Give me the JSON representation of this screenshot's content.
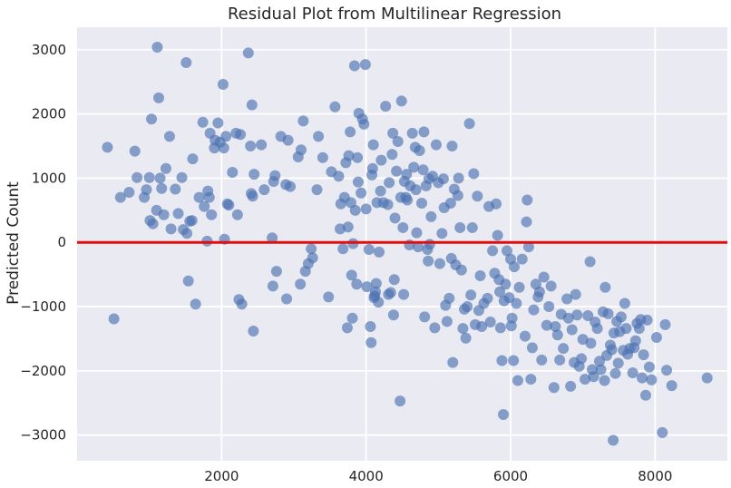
{
  "chart_data": {
    "type": "scatter",
    "title": "Residual Plot from Multilinear Regression",
    "xlabel": "",
    "ylabel": "Predicted Count",
    "xlim": [
      0,
      9000
    ],
    "ylim": [
      -3400,
      3350
    ],
    "xticks": [
      2000,
      4000,
      6000,
      8000
    ],
    "yticks": [
      -3000,
      -2000,
      -1000,
      0,
      1000,
      2000,
      3000
    ],
    "xtick_labels": [
      "2000",
      "4000",
      "6000",
      "8000"
    ],
    "ytick_labels": [
      "−3000",
      "−2000",
      "−1000",
      "0",
      "1000",
      "2000",
      "3000"
    ],
    "grid": true,
    "reference_line": {
      "y": 0,
      "color": "#e01010"
    },
    "point_color": "#4c72b0",
    "background": "#eaeaf2",
    "points": [
      [
        420,
        1480
      ],
      [
        510,
        -1190
      ],
      [
        600,
        700
      ],
      [
        720,
        780
      ],
      [
        800,
        1420
      ],
      [
        830,
        1010
      ],
      [
        930,
        700
      ],
      [
        960,
        820
      ],
      [
        1000,
        1010
      ],
      [
        1010,
        340
      ],
      [
        1030,
        1920
      ],
      [
        1050,
        290
      ],
      [
        1100,
        500
      ],
      [
        1110,
        3040
      ],
      [
        1130,
        2250
      ],
      [
        1150,
        1000
      ],
      [
        1170,
        840
      ],
      [
        1200,
        430
      ],
      [
        1230,
        1150
      ],
      [
        1280,
        1650
      ],
      [
        1300,
        210
      ],
      [
        1360,
        830
      ],
      [
        1400,
        450
      ],
      [
        1450,
        1010
      ],
      [
        1470,
        200
      ],
      [
        1510,
        2800
      ],
      [
        1520,
        140
      ],
      [
        1540,
        -600
      ],
      [
        1560,
        330
      ],
      [
        1590,
        340
      ],
      [
        1600,
        1300
      ],
      [
        1640,
        -960
      ],
      [
        1690,
        700
      ],
      [
        1740,
        1870
      ],
      [
        1760,
        560
      ],
      [
        1800,
        20
      ],
      [
        1810,
        800
      ],
      [
        1830,
        700
      ],
      [
        1840,
        1700
      ],
      [
        1860,
        430
      ],
      [
        1900,
        1470
      ],
      [
        1910,
        1590
      ],
      [
        1950,
        1860
      ],
      [
        1980,
        1560
      ],
      [
        2020,
        2460
      ],
      [
        2030,
        1470
      ],
      [
        2040,
        50
      ],
      [
        2060,
        1650
      ],
      [
        2080,
        600
      ],
      [
        2100,
        580
      ],
      [
        2150,
        1090
      ],
      [
        2200,
        1700
      ],
      [
        2220,
        430
      ],
      [
        2240,
        -890
      ],
      [
        2260,
        1680
      ],
      [
        2280,
        -960
      ],
      [
        2370,
        2950
      ],
      [
        2400,
        1500
      ],
      [
        2410,
        760
      ],
      [
        2420,
        2140
      ],
      [
        2430,
        720
      ],
      [
        2440,
        -1380
      ],
      [
        2450,
        1060
      ],
      [
        2550,
        1520
      ],
      [
        2590,
        820
      ],
      [
        2700,
        70
      ],
      [
        2710,
        -680
      ],
      [
        2720,
        950
      ],
      [
        2740,
        1040
      ],
      [
        2760,
        -450
      ],
      [
        2820,
        1650
      ],
      [
        2890,
        900
      ],
      [
        2900,
        -880
      ],
      [
        2920,
        1590
      ],
      [
        2950,
        870
      ],
      [
        3060,
        1330
      ],
      [
        3090,
        -650
      ],
      [
        3100,
        1440
      ],
      [
        3130,
        1890
      ],
      [
        3160,
        -450
      ],
      [
        3200,
        -330
      ],
      [
        3240,
        -100
      ],
      [
        3260,
        -240
      ],
      [
        3320,
        820
      ],
      [
        3340,
        1650
      ],
      [
        3400,
        1320
      ],
      [
        3480,
        -850
      ],
      [
        3520,
        1100
      ],
      [
        3570,
        2110
      ],
      [
        3620,
        1030
      ],
      [
        3640,
        210
      ],
      [
        3650,
        600
      ],
      [
        3680,
        -100
      ],
      [
        3700,
        700
      ],
      [
        3720,
        1240
      ],
      [
        3740,
        -1330
      ],
      [
        3750,
        240
      ],
      [
        3760,
        1350
      ],
      [
        3780,
        1720
      ],
      [
        3790,
        620
      ],
      [
        3800,
        -510
      ],
      [
        3810,
        -1180
      ],
      [
        3820,
        -20
      ],
      [
        3840,
        2750
      ],
      [
        3850,
        500
      ],
      [
        3870,
        -650
      ],
      [
        3880,
        1320
      ],
      [
        3890,
        940
      ],
      [
        3900,
        2010
      ],
      [
        3930,
        770
      ],
      [
        3950,
        1920
      ],
      [
        3970,
        1840
      ],
      [
        3990,
        2770
      ],
      [
        4000,
        520
      ],
      [
        4010,
        -690
      ],
      [
        4040,
        -110
      ],
      [
        4060,
        -1310
      ],
      [
        4070,
        -1560
      ],
      [
        4080,
        1050
      ],
      [
        4090,
        1150
      ],
      [
        4100,
        1520
      ],
      [
        4110,
        -860
      ],
      [
        4120,
        -830
      ],
      [
        4130,
        -770
      ],
      [
        4140,
        -640
      ],
      [
        4150,
        620
      ],
      [
        4170,
        -930
      ],
      [
        4180,
        -150
      ],
      [
        4200,
        800
      ],
      [
        4210,
        1280
      ],
      [
        4240,
        620
      ],
      [
        4270,
        2120
      ],
      [
        4300,
        590
      ],
      [
        4310,
        -810
      ],
      [
        4320,
        930
      ],
      [
        4340,
        -780
      ],
      [
        4360,
        1370
      ],
      [
        4370,
        1700
      ],
      [
        4380,
        -1130
      ],
      [
        4390,
        -580
      ],
      [
        4400,
        380
      ],
      [
        4420,
        1110
      ],
      [
        4440,
        1570
      ],
      [
        4470,
        -2470
      ],
      [
        4480,
        700
      ],
      [
        4490,
        2200
      ],
      [
        4510,
        230
      ],
      [
        4520,
        -810
      ],
      [
        4530,
        950
      ],
      [
        4550,
        700
      ],
      [
        4560,
        1060
      ],
      [
        4570,
        660
      ],
      [
        4600,
        -40
      ],
      [
        4610,
        880
      ],
      [
        4640,
        1700
      ],
      [
        4660,
        1170
      ],
      [
        4680,
        1480
      ],
      [
        4690,
        820
      ],
      [
        4700,
        150
      ],
      [
        4720,
        -70
      ],
      [
        4740,
        1430
      ],
      [
        4770,
        610
      ],
      [
        4790,
        1130
      ],
      [
        4800,
        1720
      ],
      [
        4810,
        -1160
      ],
      [
        4830,
        880
      ],
      [
        4850,
        -110
      ],
      [
        4860,
        -290
      ],
      [
        4870,
        990
      ],
      [
        4880,
        -30
      ],
      [
        4900,
        400
      ],
      [
        4920,
        1030
      ],
      [
        4950,
        -1330
      ],
      [
        4970,
        1520
      ],
      [
        5000,
        930
      ],
      [
        5020,
        -330
      ],
      [
        5050,
        140
      ],
      [
        5070,
        990
      ],
      [
        5080,
        540
      ],
      [
        5100,
        -980
      ],
      [
        5120,
        -1230
      ],
      [
        5150,
        -870
      ],
      [
        5170,
        610
      ],
      [
        5180,
        -250
      ],
      [
        5190,
        1500
      ],
      [
        5200,
        -1870
      ],
      [
        5220,
        830
      ],
      [
        5240,
        -350
      ],
      [
        5270,
        730
      ],
      [
        5280,
        1000
      ],
      [
        5300,
        230
      ],
      [
        5320,
        -430
      ],
      [
        5340,
        -1340
      ],
      [
        5360,
        -1040
      ],
      [
        5380,
        -1490
      ],
      [
        5400,
        -1000
      ],
      [
        5430,
        1850
      ],
      [
        5450,
        -820
      ],
      [
        5470,
        230
      ],
      [
        5490,
        1070
      ],
      [
        5510,
        -1280
      ],
      [
        5540,
        720
      ],
      [
        5560,
        -1060
      ],
      [
        5580,
        -520
      ],
      [
        5600,
        -1310
      ],
      [
        5630,
        -950
      ],
      [
        5680,
        -870
      ],
      [
        5700,
        560
      ],
      [
        5720,
        -1240
      ],
      [
        5750,
        -130
      ],
      [
        5780,
        -480
      ],
      [
        5800,
        600
      ],
      [
        5820,
        110
      ],
      [
        5840,
        -580
      ],
      [
        5850,
        -770
      ],
      [
        5860,
        -1330
      ],
      [
        5880,
        -1840
      ],
      [
        5900,
        -2680
      ],
      [
        5910,
        -910
      ],
      [
        5930,
        -650
      ],
      [
        5950,
        -130
      ],
      [
        5980,
        -860
      ],
      [
        6000,
        -260
      ],
      [
        6010,
        -1300
      ],
      [
        6020,
        -1180
      ],
      [
        6040,
        -1840
      ],
      [
        6050,
        -380
      ],
      [
        6080,
        -950
      ],
      [
        6100,
        -2150
      ],
      [
        6120,
        -700
      ],
      [
        6160,
        -260
      ],
      [
        6200,
        -1460
      ],
      [
        6220,
        320
      ],
      [
        6230,
        660
      ],
      [
        6250,
        -70
      ],
      [
        6280,
        -2130
      ],
      [
        6300,
        -1640
      ],
      [
        6320,
        -1050
      ],
      [
        6350,
        -650
      ],
      [
        6380,
        -850
      ],
      [
        6400,
        -770
      ],
      [
        6430,
        -1830
      ],
      [
        6460,
        -540
      ],
      [
        6500,
        -1290
      ],
      [
        6530,
        -1000
      ],
      [
        6560,
        -680
      ],
      [
        6600,
        -2260
      ],
      [
        6620,
        -1310
      ],
      [
        6650,
        -1440
      ],
      [
        6680,
        -1830
      ],
      [
        6700,
        -1120
      ],
      [
        6730,
        -1650
      ],
      [
        6780,
        -880
      ],
      [
        6800,
        -1180
      ],
      [
        6830,
        -2240
      ],
      [
        6850,
        -1360
      ],
      [
        6880,
        -1870
      ],
      [
        6900,
        -810
      ],
      [
        6920,
        -1130
      ],
      [
        6950,
        -1930
      ],
      [
        6980,
        -1810
      ],
      [
        7000,
        -1510
      ],
      [
        7030,
        -2130
      ],
      [
        7070,
        -1140
      ],
      [
        7100,
        -300
      ],
      [
        7110,
        -1570
      ],
      [
        7130,
        -1980
      ],
      [
        7150,
        -2090
      ],
      [
        7170,
        -1240
      ],
      [
        7200,
        -1340
      ],
      [
        7230,
        -1850
      ],
      [
        7250,
        -1980
      ],
      [
        7280,
        -1080
      ],
      [
        7300,
        -2150
      ],
      [
        7310,
        -700
      ],
      [
        7330,
        -1760
      ],
      [
        7350,
        -1110
      ],
      [
        7380,
        -1600
      ],
      [
        7400,
        -1670
      ],
      [
        7420,
        -3080
      ],
      [
        7430,
        -1410
      ],
      [
        7450,
        -2040
      ],
      [
        7470,
        -1230
      ],
      [
        7490,
        -1880
      ],
      [
        7510,
        -1390
      ],
      [
        7530,
        -1160
      ],
      [
        7560,
        -1680
      ],
      [
        7580,
        -950
      ],
      [
        7600,
        -1340
      ],
      [
        7620,
        -1740
      ],
      [
        7650,
        -1650
      ],
      [
        7690,
        -2030
      ],
      [
        7710,
        -1640
      ],
      [
        7730,
        -1530
      ],
      [
        7750,
        -1260
      ],
      [
        7780,
        -1340
      ],
      [
        7800,
        -1200
      ],
      [
        7820,
        -2110
      ],
      [
        7840,
        -1750
      ],
      [
        7870,
        -2380
      ],
      [
        7890,
        -1210
      ],
      [
        7920,
        -1940
      ],
      [
        7950,
        -2140
      ],
      [
        8020,
        -1480
      ],
      [
        8100,
        -2960
      ],
      [
        8140,
        -1280
      ],
      [
        8160,
        -1990
      ],
      [
        8230,
        -2230
      ],
      [
        8720,
        -2110
      ]
    ]
  }
}
